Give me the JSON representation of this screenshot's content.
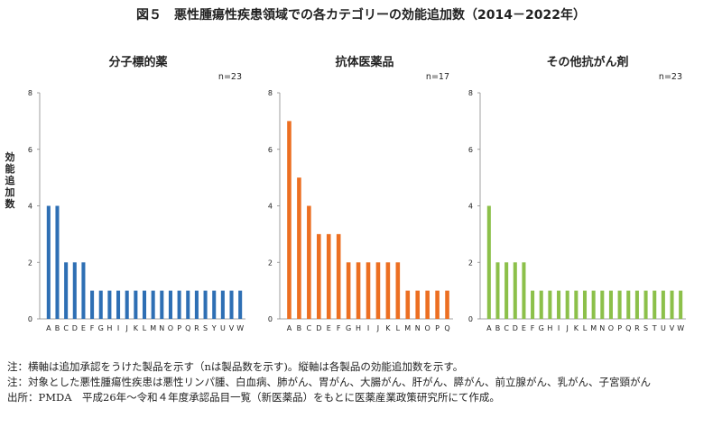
{
  "figure_title": "図５　悪性腫瘍性疾患領域での各カテゴリーの効能追加数（2014－2022年）",
  "y_axis_label": "効能追加数",
  "chart_data": [
    {
      "type": "bar",
      "title": "分子標的薬",
      "n_label": "n=23",
      "color": "#2e6fb4",
      "ylim": [
        0,
        8
      ],
      "yticks": [
        0,
        2,
        4,
        6,
        8
      ],
      "grid": false,
      "categories": [
        "A",
        "B",
        "C",
        "D",
        "E",
        "F",
        "G",
        "H",
        "I",
        "J",
        "K",
        "L",
        "M",
        "N",
        "O",
        "P",
        "Q",
        "R",
        "S",
        "Y",
        "U",
        "V",
        "W"
      ],
      "values": [
        4,
        4,
        2,
        2,
        2,
        1,
        1,
        1,
        1,
        1,
        1,
        1,
        1,
        1,
        1,
        1,
        1,
        1,
        1,
        1,
        1,
        1,
        1
      ]
    },
    {
      "type": "bar",
      "title": "抗体医薬品",
      "n_label": "n=17",
      "color": "#ec6f22",
      "ylim": [
        0,
        8
      ],
      "yticks": [
        0,
        2,
        4,
        6,
        8
      ],
      "grid": false,
      "categories": [
        "A",
        "B",
        "C",
        "D",
        "E",
        "F",
        "G",
        "H",
        "I",
        "J",
        "K",
        "L",
        "M",
        "N",
        "O",
        "P",
        "Q"
      ],
      "values": [
        7,
        5,
        4,
        3,
        3,
        3,
        2,
        2,
        2,
        2,
        2,
        2,
        1,
        1,
        1,
        1,
        1
      ]
    },
    {
      "type": "bar",
      "title": "その他抗がん剤",
      "n_label": "n=23",
      "color": "#8cc04a",
      "ylim": [
        0,
        8
      ],
      "yticks": [
        0,
        2,
        4,
        6,
        8
      ],
      "grid": false,
      "categories": [
        "A",
        "B",
        "C",
        "D",
        "E",
        "F",
        "G",
        "H",
        "I",
        "J",
        "K",
        "L",
        "M",
        "N",
        "O",
        "P",
        "Q",
        "R",
        "S",
        "T",
        "U",
        "V",
        "W"
      ],
      "values": [
        4,
        2,
        2,
        2,
        2,
        1,
        1,
        1,
        1,
        1,
        1,
        1,
        1,
        1,
        1,
        1,
        1,
        1,
        1,
        1,
        1,
        1,
        1
      ]
    }
  ],
  "notes": [
    "注：横軸は追加承認をうけた製品を示す（nは製品数を示す)。縦軸は各製品の効能追加数を示す。",
    "注：対象とした悪性腫瘍性疾患は悪性リンパ腫、白血病、肺がん、胃がん、大腸がん、肝がん、膵がん、前立腺がん、乳がん、子宮頸がん",
    "出所：PMDA　平成26年～令和４年度承認品目一覧（新医薬品）をもとに医薬産業政策研究所にて作成。"
  ]
}
